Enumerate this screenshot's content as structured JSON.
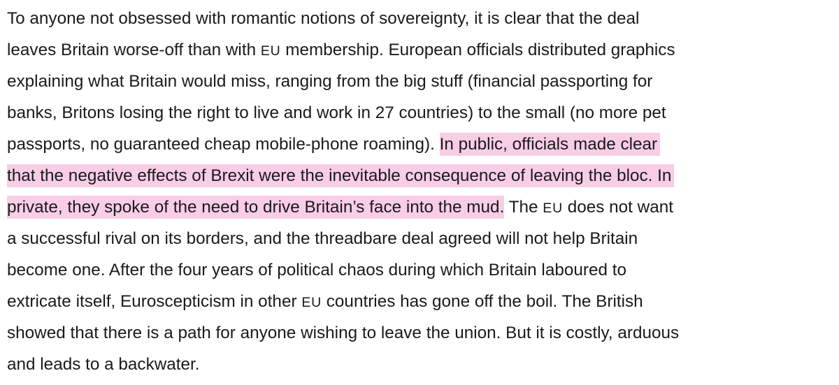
{
  "article": {
    "highlight_color": "#f8cde6",
    "text_color": "#1a1a1a",
    "lines": [
      {
        "a": "To anyone not obsessed with romantic notions of sovereignty, it is clear that the deal"
      },
      {
        "a": "leaves Britain worse-off than with ",
        "sc": "EU",
        "b": " membership. European officials distributed graphics"
      },
      {
        "a": "explaining what Britain would miss, ranging from the big stuff (financial passporting for"
      },
      {
        "a": "banks, Britons losing the right to live and work in 27 countries) to the small (no more pet"
      },
      {
        "a": "passports, no guaranteed cheap mobile-phone roaming). ",
        "hl": "In public, officials made clear"
      },
      {
        "hl": "that the negative effects of Brexit were the inevitable consequence of leaving the bloc. In"
      },
      {
        "hl": "private, they spoke of the need to drive Britain’s face into the mud.",
        "a": " The ",
        "sc": "EU",
        "b": " does not want"
      },
      {
        "a": "a successful rival on its borders, and the threadbare deal agreed will not help Britain"
      },
      {
        "a": "become one. After the four years of political chaos during which Britain laboured to"
      },
      {
        "a": "extricate itself, Euroscepticism in other ",
        "sc": "EU",
        "b": " countries has gone off the boil. The British"
      },
      {
        "a": "showed that there is a path for anyone wishing to leave the union. But it is costly, arduous"
      },
      {
        "a": "and leads to a backwater."
      }
    ]
  }
}
